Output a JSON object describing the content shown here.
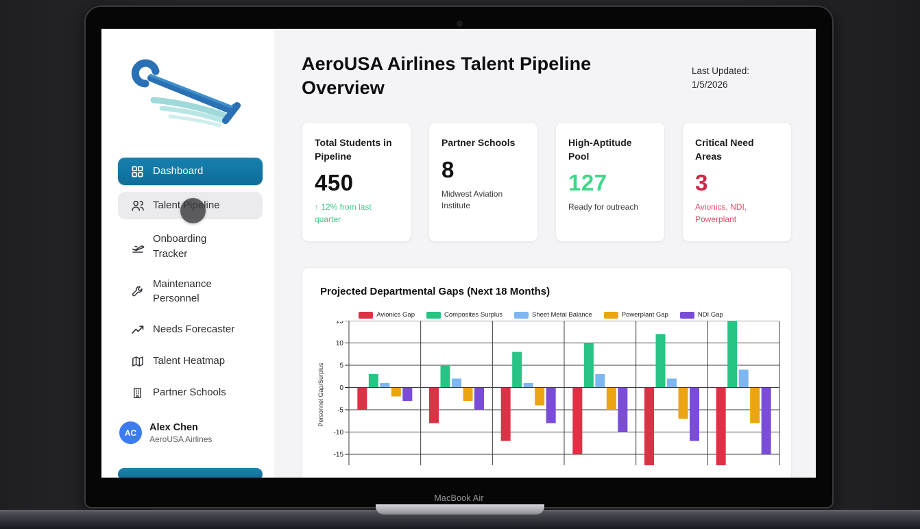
{
  "device": {
    "label": "MacBook Air"
  },
  "colors": {
    "accent": "#1373a3",
    "sidebar_hover": "#ebebee",
    "positive_green": "#35cf85",
    "negative_red": "#d32a4b"
  },
  "sidebar": {
    "logo": "winged-wrench-logo",
    "nav": [
      {
        "label": "Dashboard",
        "icon": "grid-icon",
        "state": "active"
      },
      {
        "label": "Talent Pipeline",
        "icon": "users-icon",
        "state": "hovered"
      },
      {
        "label": "Onboarding Tracker",
        "icon": "plane-icon",
        "state": "default"
      },
      {
        "label": "Maintenance Personnel",
        "icon": "wrench-icon",
        "state": "default"
      },
      {
        "label": "Needs Forecaster",
        "icon": "trend-icon",
        "state": "default"
      },
      {
        "label": "Talent Heatmap",
        "icon": "map-icon",
        "state": "default"
      },
      {
        "label": "Partner Schools",
        "icon": "building-icon",
        "state": "default"
      }
    ],
    "user": {
      "initials": "AC",
      "name": "Alex Chen",
      "org": "AeroUSA Airlines"
    }
  },
  "header": {
    "title": "AeroUSA Airlines Talent Pipeline Overview",
    "last_updated_label": "Last Updated:",
    "last_updated_value": "1/5/2026"
  },
  "stats": [
    {
      "label": "Total Students in Pipeline",
      "value": "450",
      "sub": "↑ 12% from last quarter",
      "value_color": "#111114",
      "sub_color": "#35cf85"
    },
    {
      "label": "Partner Schools",
      "value": "8",
      "sub": "Midwest Aviation Institute",
      "value_color": "#111114",
      "sub_color": "#3c3c42"
    },
    {
      "label": "High-Aptitude Pool",
      "value": "127",
      "sub": "Ready for outreach",
      "value_color": "#3fd688",
      "sub_color": "#3c3c42"
    },
    {
      "label": "Critical Need Areas",
      "value": "3",
      "sub": "Avionics, NDI, Powerplant",
      "value_color": "#d12646",
      "sub_color": "#e14a66"
    }
  ],
  "chart_card": {
    "title": "Projected Departmental Gaps (Next 18 Months)"
  },
  "chart_data": {
    "type": "bar",
    "title": "Projected Departmental Gaps (Next 18 Months)",
    "xlabel": "",
    "ylabel": "Personnel Gap/Surplus",
    "yticks": [
      15,
      10,
      5,
      0,
      -5,
      -10,
      -15
    ],
    "ylim_visible": [
      -17.5,
      15
    ],
    "grid": true,
    "legend_position": "top",
    "categories": [
      "",
      "",
      "",
      "",
      "",
      ""
    ],
    "categories_note": "6 period groups; x-axis labels cut off by screen bottom edge",
    "series": [
      {
        "name": "Avionics Gap",
        "color": "#dc3246",
        "values": [
          -5,
          -8,
          -12,
          -15,
          -18,
          -20
        ],
        "clipped_below_view": [
          false,
          false,
          false,
          false,
          true,
          true
        ]
      },
      {
        "name": "Composites Surplus",
        "color": "#27c483",
        "values": [
          3,
          5,
          8,
          10,
          12,
          15
        ]
      },
      {
        "name": "Sheet Metal Balance",
        "color": "#7db6f0",
        "values": [
          1,
          2,
          1,
          3,
          2,
          4
        ]
      },
      {
        "name": "Powerplant Gap",
        "color": "#eca512",
        "values": [
          -2,
          -3,
          -4,
          -5,
          -7,
          -8
        ]
      },
      {
        "name": "NDI Gap",
        "color": "#7a4cd8",
        "values": [
          -3,
          -5,
          -8,
          -10,
          -12,
          -15
        ]
      }
    ]
  }
}
